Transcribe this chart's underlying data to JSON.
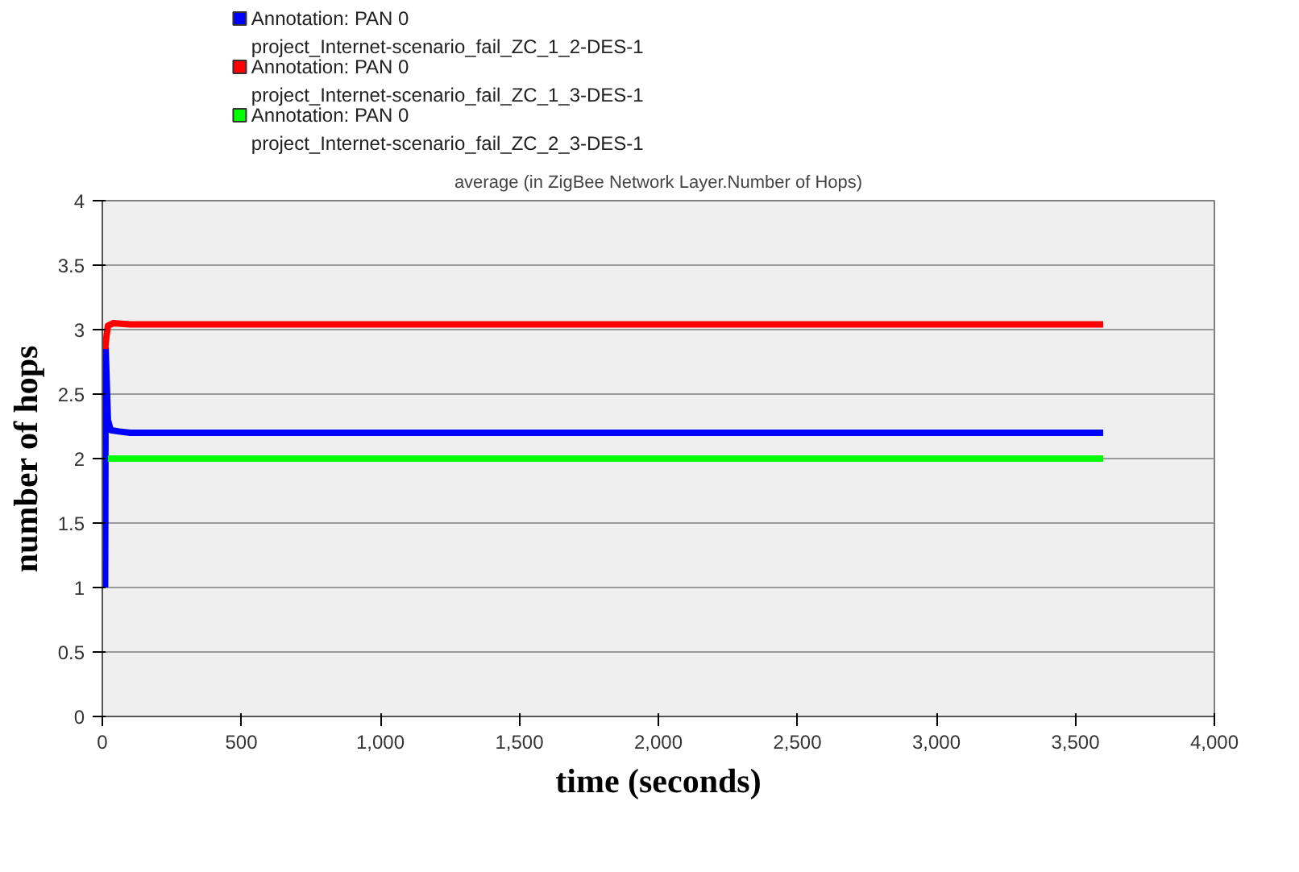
{
  "chart_data": {
    "type": "line",
    "title": "average (in ZigBee Network Layer.Number of Hops)",
    "xlabel": "time (seconds)",
    "ylabel": "number of hops",
    "series": [
      {
        "name": "Annotation: PAN 0\nproject_Internet-scenario_fail_ZC_1_2-DES-1",
        "color": "#0000ff",
        "x": [
          10,
          12,
          20,
          30,
          60,
          100,
          500,
          1000,
          2000,
          3000,
          3600
        ],
        "values": [
          1.0,
          2.85,
          2.3,
          2.22,
          2.21,
          2.2,
          2.2,
          2.2,
          2.2,
          2.2,
          2.2
        ]
      },
      {
        "name": "Annotation: PAN 0\nproject_Internet-scenario_fail_ZC_1_3-DES-1",
        "color": "#ff0000",
        "x": [
          10,
          15,
          20,
          40,
          100,
          500,
          1000,
          2000,
          3000,
          3600
        ],
        "values": [
          2.85,
          2.95,
          3.03,
          3.05,
          3.04,
          3.04,
          3.04,
          3.04,
          3.04,
          3.04
        ]
      },
      {
        "name": "Annotation: PAN 0\nproject_Internet-scenario_fail_ZC_2_3-DES-1",
        "color": "#00ff00",
        "x": [
          20,
          3600
        ],
        "values": [
          2.0,
          2.0
        ]
      }
    ],
    "xlim": [
      0,
      4000
    ],
    "xticks": [
      0,
      500,
      {
        "value": 1000,
        "label": "1,000"
      },
      {
        "value": 1500,
        "label": "1,500"
      },
      {
        "value": 2000,
        "label": "2,000"
      },
      {
        "value": 2500,
        "label": "2,500"
      },
      {
        "value": 3000,
        "label": "3,000"
      },
      {
        "value": 3500,
        "label": "3,500"
      },
      {
        "value": 4000,
        "label": "4,000"
      }
    ],
    "ylim": [
      0,
      4
    ],
    "yticks": [
      0,
      0.5,
      1,
      1.5,
      2,
      2.5,
      3,
      3.5,
      4
    ],
    "grid": "y",
    "legend": "top left",
    "marker": "none",
    "line_style": "solid"
  }
}
